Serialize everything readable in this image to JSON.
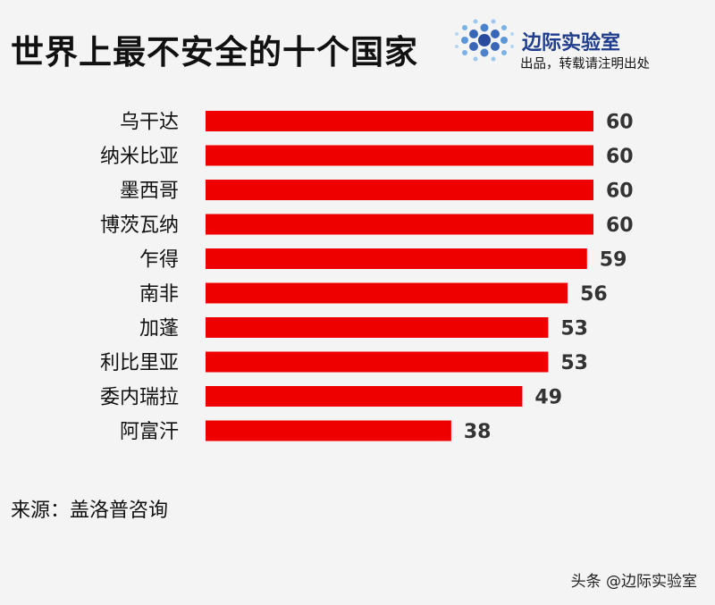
{
  "header": {
    "title": "世界上最不安全的十个国家",
    "brand_name": "边际实验室",
    "brand_sub": "出品，转载请注明出处"
  },
  "chart_data": {
    "type": "bar",
    "orientation": "horizontal",
    "title": "世界上最不安全的十个国家",
    "xlabel": "",
    "ylabel": "",
    "categories": [
      "乌干达",
      "纳米比亚",
      "墨西哥",
      "博茨瓦纳",
      "乍得",
      "南非",
      "加蓬",
      "利比里亚",
      "委内瑞拉",
      "阿富汗"
    ],
    "values": [
      60,
      60,
      60,
      60,
      59,
      56,
      53,
      53,
      49,
      38
    ],
    "xlim": [
      0,
      60
    ],
    "grid": false,
    "data_labels": true,
    "bar_color": "#ee0000"
  },
  "footer": {
    "source": "来源：盖洛普咨询",
    "watermark": "头条 @边际实验室"
  }
}
